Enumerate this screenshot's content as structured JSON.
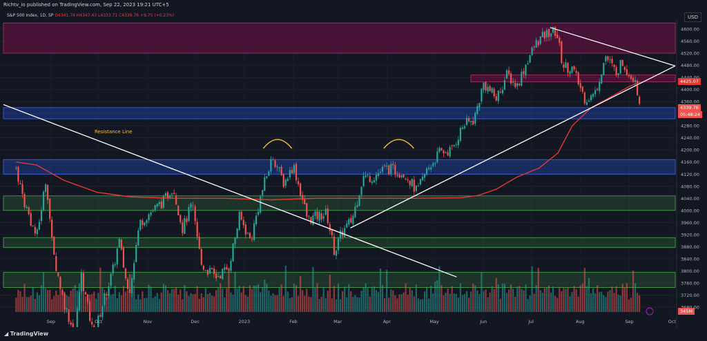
{
  "header": {
    "published": "Richtv_io published on TradingView.com, Sep 22, 2023 19:21 UTC+5"
  },
  "symbol": {
    "name": "S&P 500 Index, 1D, SP",
    "open": "O4341.74",
    "high": "H4347.43",
    "low": "L4333.71",
    "close": "C4339.76",
    "change": "+9.75 (+0.23%)"
  },
  "currency": "USD",
  "annotations": {
    "resistance_line": "Resistance Line"
  },
  "price_labels": {
    "ma_value": "4425.07",
    "last_price": "4339.76",
    "countdown": "05:48:24",
    "volume": "345M"
  },
  "footer": {
    "brand": "TradingView"
  },
  "colors": {
    "background": "#131722",
    "up": "#26a69a",
    "down": "#ef5350",
    "moving_average": "#e53935",
    "trendline": "#ffffff",
    "zone_blue": "#2962ff",
    "zone_green": "#4caf50",
    "zone_red": "#880e4f",
    "annotation": "#f5c242"
  },
  "chart_data": {
    "type": "candlestick",
    "title": "S&P 500 Index, 1D",
    "y_ticks": [
      3680,
      3720,
      3760,
      3800,
      3840,
      3880,
      3920,
      3960,
      4000,
      4040,
      4080,
      4120,
      4160,
      4200,
      4240,
      4280,
      4320,
      4360,
      4400,
      4440,
      4480,
      4520,
      4560,
      4600
    ],
    "ylim": [
      3680,
      4620
    ],
    "x_labels": [
      "Sep",
      "Oct",
      "Nov",
      "Dec",
      "2023",
      "Feb",
      "Mar",
      "Apr",
      "May",
      "Jun",
      "Jul",
      "Aug",
      "Sep",
      "Oct"
    ],
    "close_path": [
      [
        "2022-08-24",
        4140
      ],
      [
        "2022-08-29",
        4030
      ],
      [
        "2022-09-06",
        3910
      ],
      [
        "2022-09-12",
        4110
      ],
      [
        "2022-09-16",
        3870
      ],
      [
        "2022-09-23",
        3700
      ],
      [
        "2022-09-30",
        3585
      ],
      [
        "2022-10-04",
        3790
      ],
      [
        "2022-10-12",
        3580
      ],
      [
        "2022-10-17",
        3680
      ],
      [
        "2022-10-24",
        3800
      ],
      [
        "2022-10-28",
        3900
      ],
      [
        "2022-11-03",
        3720
      ],
      [
        "2022-11-10",
        3960
      ],
      [
        "2022-11-16",
        3990
      ],
      [
        "2022-11-25",
        4030
      ],
      [
        "2022-12-01",
        4080
      ],
      [
        "2022-12-07",
        3940
      ],
      [
        "2022-12-13",
        4020
      ],
      [
        "2022-12-19",
        3820
      ],
      [
        "2022-12-28",
        3780
      ],
      [
        "2023-01-05",
        3810
      ],
      [
        "2023-01-12",
        3980
      ],
      [
        "2023-01-19",
        3900
      ],
      [
        "2023-01-26",
        4060
      ],
      [
        "2023-02-02",
        4180
      ],
      [
        "2023-02-09",
        4090
      ],
      [
        "2023-02-15",
        4150
      ],
      [
        "2023-02-24",
        3970
      ],
      [
        "2023-03-02",
        3980
      ],
      [
        "2023-03-08",
        3990
      ],
      [
        "2023-03-13",
        3860
      ],
      [
        "2023-03-17",
        3920
      ],
      [
        "2023-03-24",
        3970
      ],
      [
        "2023-03-31",
        4110
      ],
      [
        "2023-04-06",
        4110
      ],
      [
        "2023-04-14",
        4140
      ],
      [
        "2023-04-21",
        4130
      ],
      [
        "2023-04-27",
        4120
      ],
      [
        "2023-05-04",
        4060
      ],
      [
        "2023-05-10",
        4130
      ],
      [
        "2023-05-18",
        4190
      ],
      [
        "2023-05-26",
        4200
      ],
      [
        "2023-06-02",
        4280
      ],
      [
        "2023-06-09",
        4300
      ],
      [
        "2023-06-15",
        4420
      ],
      [
        "2023-06-23",
        4370
      ],
      [
        "2023-06-30",
        4450
      ],
      [
        "2023-07-06",
        4410
      ],
      [
        "2023-07-13",
        4500
      ],
      [
        "2023-07-19",
        4560
      ],
      [
        "2023-07-27",
        4590
      ],
      [
        "2023-07-31",
        4590
      ],
      [
        "2023-08-04",
        4480
      ],
      [
        "2023-08-10",
        4470
      ],
      [
        "2023-08-18",
        4370
      ],
      [
        "2023-08-24",
        4380
      ],
      [
        "2023-08-31",
        4510
      ],
      [
        "2023-09-06",
        4460
      ],
      [
        "2023-09-11",
        4490
      ],
      [
        "2023-09-15",
        4450
      ],
      [
        "2023-09-19",
        4440
      ],
      [
        "2023-09-20",
        4400
      ],
      [
        "2023-09-21",
        4330
      ],
      [
        "2023-09-22",
        4340
      ]
    ],
    "moving_average": [
      [
        "2022-08-24",
        4160
      ],
      [
        "2022-09-06",
        4150
      ],
      [
        "2022-09-23",
        4100
      ],
      [
        "2022-10-14",
        4060
      ],
      [
        "2022-11-04",
        4045
      ],
      [
        "2022-12-02",
        4040
      ],
      [
        "2023-01-03",
        4040
      ],
      [
        "2023-02-01",
        4035
      ],
      [
        "2023-03-01",
        4040
      ],
      [
        "2023-04-03",
        4040
      ],
      [
        "2023-05-01",
        4040
      ],
      [
        "2023-06-01",
        4042
      ],
      [
        "2023-06-12",
        4050
      ],
      [
        "2023-06-23",
        4070
      ],
      [
        "2023-07-06",
        4110
      ],
      [
        "2023-07-20",
        4140
      ],
      [
        "2023-08-01",
        4190
      ],
      [
        "2023-08-10",
        4280
      ],
      [
        "2023-08-22",
        4340
      ],
      [
        "2023-09-05",
        4380
      ],
      [
        "2023-09-15",
        4410
      ],
      [
        "2023-09-22",
        4425
      ]
    ],
    "zones": [
      {
        "color": "red",
        "from": 4520,
        "to": 4620
      },
      {
        "color": "red",
        "from": 4425,
        "to": 4448
      },
      {
        "color": "blue",
        "from": 4303,
        "to": 4340
      },
      {
        "color": "blue",
        "from": 4120,
        "to": 4168
      },
      {
        "color": "green",
        "from": 4000,
        "to": 4048
      },
      {
        "color": "green",
        "from": 3877,
        "to": 3910
      },
      {
        "color": "green",
        "from": 3745,
        "to": 3795
      }
    ],
    "trendlines": [
      {
        "name": "Resistance Line",
        "from": [
          "2022-08-16",
          4350
        ],
        "to": [
          "2023-05-29",
          3780
        ]
      },
      {
        "name": "",
        "from": [
          "2023-03-23",
          3942
        ],
        "to": [
          "2023-10-14",
          4478
        ]
      },
      {
        "name": "",
        "from": [
          "2023-07-27",
          4605
        ],
        "to": [
          "2023-10-14",
          4478
        ]
      }
    ],
    "arcs": [
      {
        "from": "2023-01-27",
        "to": "2023-02-14",
        "level": 4205
      },
      {
        "from": "2023-04-13",
        "to": "2023-05-02",
        "level": 4205
      }
    ]
  }
}
